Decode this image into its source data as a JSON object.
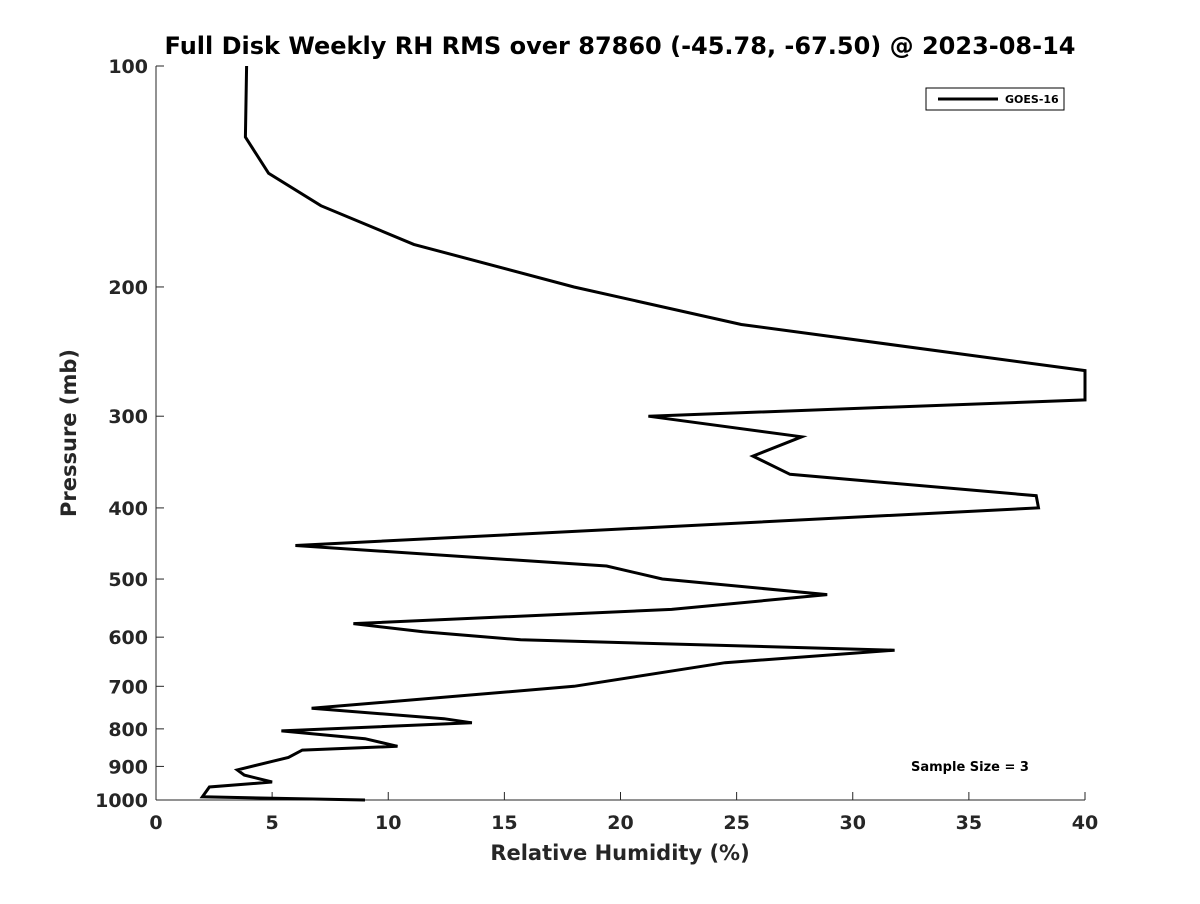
{
  "chart_data": {
    "type": "line",
    "title": "Full Disk Weekly RH RMS over 87860 (-45.78, -67.50) @ 2023-08-14",
    "xlabel": "Relative Humidity (%)",
    "ylabel": "Pressure (mb)",
    "xlim": [
      0,
      40
    ],
    "ylim": [
      1000,
      100
    ],
    "y_scale": "log",
    "y_reversed": true,
    "grid": false,
    "legend_position": "top-right",
    "x_ticks": [
      "0",
      "5",
      "10",
      "15",
      "20",
      "25",
      "30",
      "35",
      "40"
    ],
    "y_ticks": [
      "100",
      "200",
      "300",
      "400",
      "500",
      "600",
      "700",
      "800",
      "900",
      "1000"
    ],
    "x_tick_values": [
      0,
      5,
      10,
      15,
      20,
      25,
      30,
      35,
      40
    ],
    "y_tick_values": [
      100,
      200,
      300,
      400,
      500,
      600,
      700,
      800,
      900,
      1000
    ],
    "series": [
      {
        "name": "GOES-16",
        "color": "#000000",
        "x": [
          3.9,
          3.85,
          4.85,
          7.1,
          11.1,
          18.0,
          25.2,
          40.0,
          40.0,
          21.2,
          27.8,
          25.7,
          27.3,
          37.9,
          38.0,
          6.0,
          19.4,
          21.8,
          28.9,
          22.2,
          8.5,
          11.5,
          15.7,
          31.8,
          24.5,
          18.0,
          6.7,
          12.4,
          13.6,
          5.4,
          9.0,
          10.4,
          6.3,
          5.7,
          3.5,
          3.8,
          5.0,
          2.3,
          2.0,
          9.0
        ],
        "y": [
          100,
          125,
          140,
          155,
          175,
          200,
          225,
          260,
          285,
          300,
          320,
          340,
          360,
          385,
          400,
          450,
          480,
          500,
          525,
          550,
          575,
          590,
          605,
          625,
          650,
          700,
          750,
          775,
          785,
          805,
          825,
          845,
          855,
          875,
          910,
          925,
          945,
          960,
          990,
          1000
        ]
      }
    ],
    "annotations": [
      "Sample Size = 3"
    ]
  }
}
